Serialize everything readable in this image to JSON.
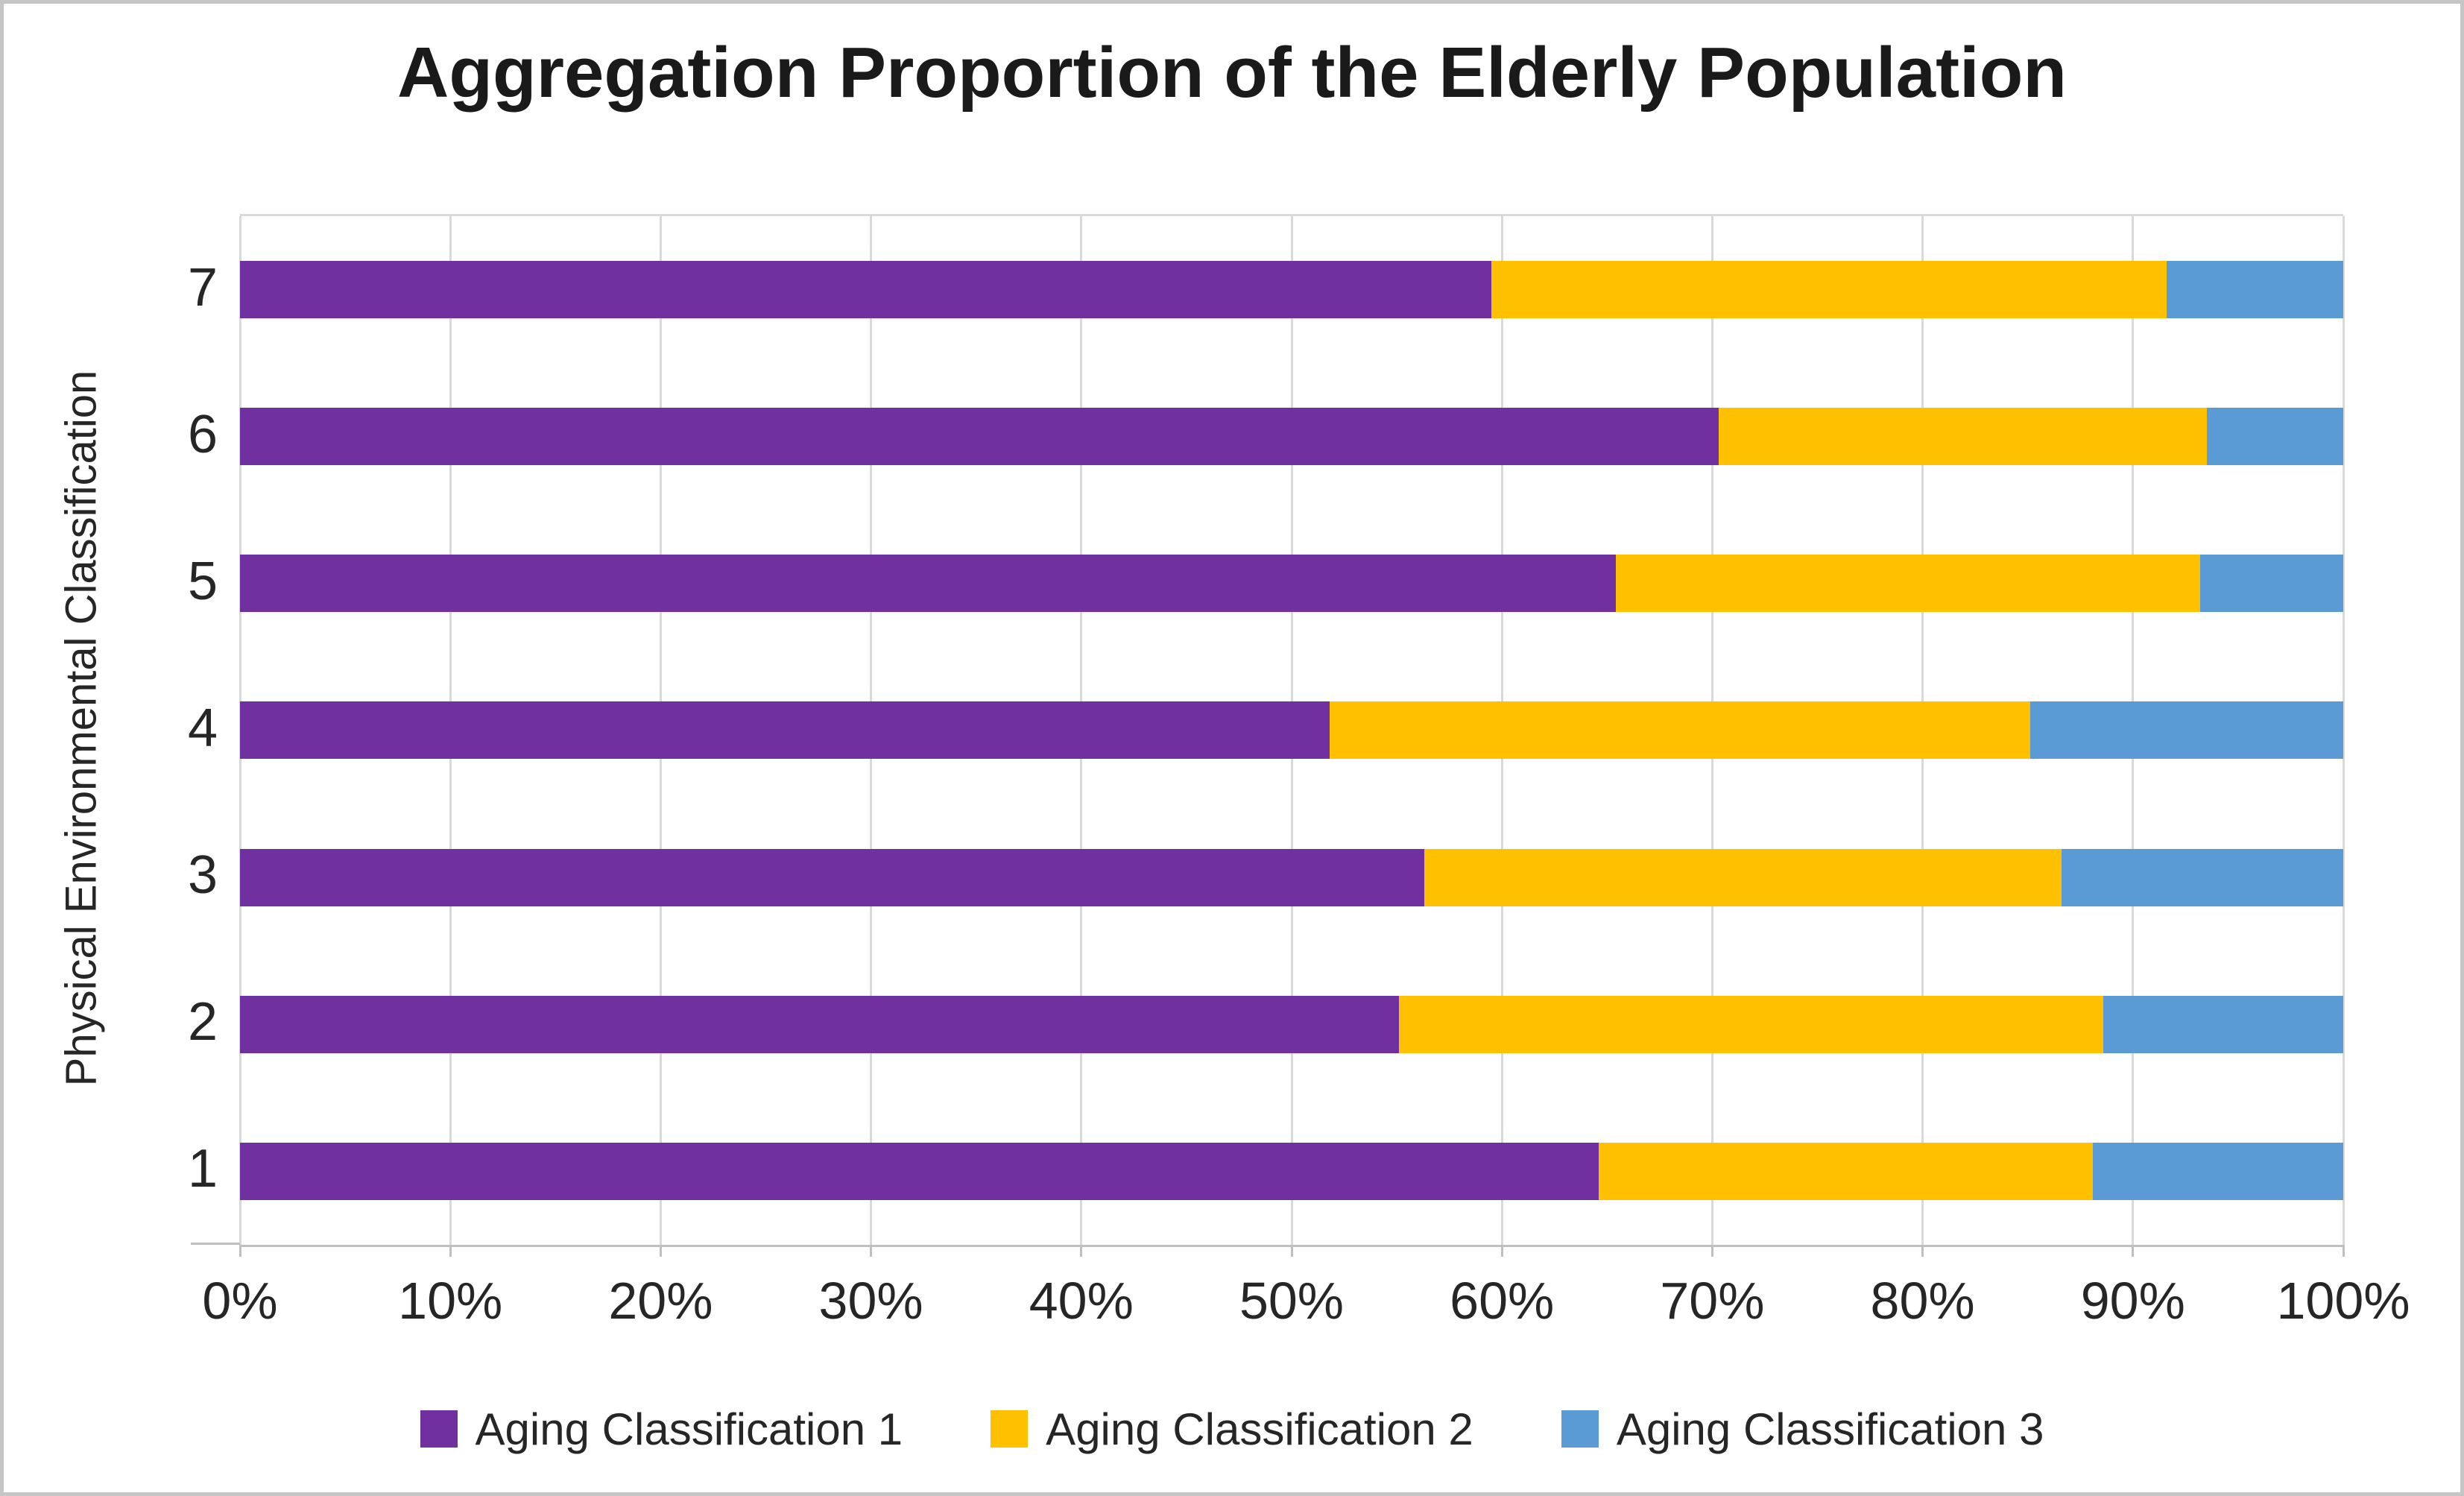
{
  "title": "Aggregation Proportion of the Elderly Population",
  "y_axis_title": "Physical Environmental Classification",
  "colors": {
    "series1": "#7030a0",
    "series2": "#ffc000",
    "series3": "#5b9bd5",
    "gridline": "#d9d9d9",
    "axis_line": "#bfbfbf",
    "text": "#262626"
  },
  "chart_data": {
    "type": "bar",
    "orientation": "horizontal",
    "stacked": true,
    "title": "Aggregation Proportion of the Elderly Population",
    "xlabel": "",
    "ylabel": "Physical Environmental Classification",
    "xlim": [
      0,
      100
    ],
    "grid": true,
    "legend_position": "bottom",
    "x_ticks": [
      "0%",
      "10%",
      "20%",
      "30%",
      "40%",
      "50%",
      "60%",
      "70%",
      "80%",
      "90%",
      "100%"
    ],
    "categories_top_to_bottom": [
      "7",
      "6",
      "5",
      "4",
      "3",
      "2",
      "1"
    ],
    "series": [
      {
        "name": "Aging Classification 1",
        "color": "#7030a0",
        "values": [
          59.5,
          70.3,
          65.4,
          51.8,
          56.3,
          55.1,
          64.6
        ]
      },
      {
        "name": "Aging Classification 2",
        "color": "#ffc000",
        "values": [
          32.1,
          23.2,
          27.8,
          33.3,
          30.3,
          33.5,
          23.5
        ]
      },
      {
        "name": "Aging Classification 3",
        "color": "#5b9bd5",
        "values": [
          8.4,
          6.5,
          6.8,
          14.9,
          13.4,
          11.4,
          11.9
        ]
      }
    ]
  }
}
